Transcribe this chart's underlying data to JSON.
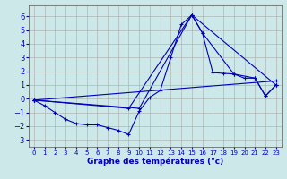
{
  "title": "Graphe des températures (°c)",
  "background_color": "#cce8e8",
  "grid_color": "#aaaaaa",
  "line_color": "#0000bb",
  "spine_color": "#555555",
  "xlim": [
    -0.5,
    23.5
  ],
  "ylim": [
    -3.5,
    6.8
  ],
  "yticks": [
    -3,
    -2,
    -1,
    0,
    1,
    2,
    3,
    4,
    5,
    6
  ],
  "xticks": [
    0,
    1,
    2,
    3,
    4,
    5,
    6,
    7,
    8,
    9,
    10,
    11,
    12,
    13,
    14,
    15,
    16,
    17,
    18,
    19,
    20,
    21,
    22,
    23
  ],
  "series1_x": [
    0,
    1,
    2,
    3,
    4,
    5,
    6,
    7,
    8,
    9,
    10,
    11,
    12,
    13,
    14,
    15,
    16,
    17,
    18,
    19,
    20,
    21,
    22,
    23
  ],
  "series1_y": [
    -0.1,
    -0.5,
    -1.0,
    -1.5,
    -1.8,
    -1.9,
    -1.9,
    -2.1,
    -2.3,
    -2.6,
    -0.9,
    0.1,
    0.6,
    3.0,
    5.4,
    6.1,
    4.8,
    1.9,
    1.85,
    1.8,
    1.5,
    1.5,
    0.2,
    1.0
  ],
  "series2_x": [
    0,
    9,
    15,
    16,
    19,
    21,
    22,
    23
  ],
  "series2_y": [
    -0.1,
    -0.7,
    6.1,
    4.8,
    1.8,
    1.5,
    0.2,
    1.0
  ],
  "series3_x": [
    0,
    10,
    15,
    23
  ],
  "series3_y": [
    -0.1,
    -0.7,
    6.1,
    1.0
  ],
  "series4_x": [
    0,
    23
  ],
  "series4_y": [
    -0.1,
    1.3
  ]
}
